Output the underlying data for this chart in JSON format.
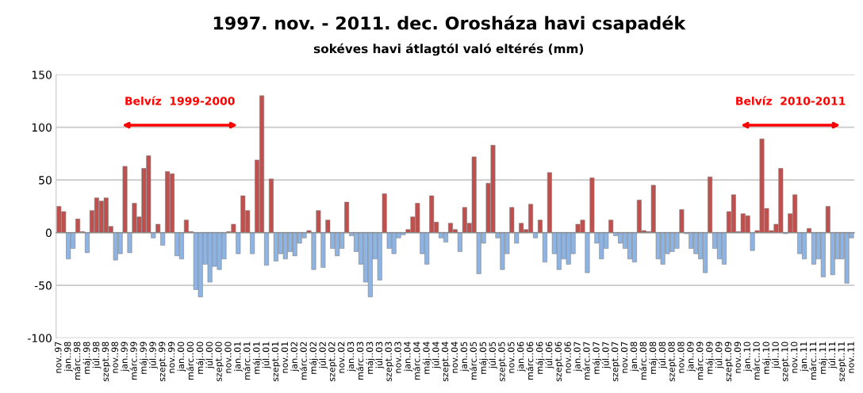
{
  "chart_data": {
    "type": "bar",
    "title": "1997. nov. - 2011. dec. Orosháza havi csapadék",
    "subtitle": "sokéves havi átlagtól való eltérés (mm)",
    "categories": [
      "nov..97",
      null,
      "jan..98",
      null,
      "márc..98",
      null,
      "máj..98",
      null,
      "júl..98",
      null,
      "szept..98",
      null,
      "nov..98",
      null,
      "jan..99",
      null,
      "márc..99",
      null,
      "máj..99",
      null,
      "júl..99",
      null,
      "szept..99",
      null,
      "nov..99",
      null,
      "jan..00",
      null,
      "márc..00",
      null,
      "máj..00",
      null,
      "júl..00",
      null,
      "szept..00",
      null,
      "nov..00",
      null,
      "jan..01",
      null,
      "márc..01",
      null,
      "máj..01",
      null,
      "júl..01",
      null,
      "szept..01",
      null,
      "nov..01",
      null,
      "jan..02",
      null,
      "márc..02",
      null,
      "máj..02",
      null,
      "júl..02",
      null,
      "szept..02",
      null,
      "nov..02",
      null,
      "jan..03",
      null,
      "márc..03",
      null,
      "máj..03",
      null,
      "júl..03",
      null,
      "szept..03",
      null,
      "nov..03",
      null,
      "jan..04",
      null,
      "márc..04",
      null,
      "máj..04",
      null,
      "júl..04",
      null,
      "szept..04",
      null,
      "nov..04",
      null,
      "jan..05",
      null,
      "márc..05",
      null,
      "máj..05",
      null,
      "júl..05",
      null,
      "szept..05",
      null,
      "nov..05",
      null,
      "jan..06",
      null,
      "márc..06",
      null,
      "máj..06",
      null,
      "júl..06",
      null,
      "szept..06",
      null,
      "nov..06",
      null,
      "jan..07",
      null,
      "márc..07",
      null,
      "máj..07",
      null,
      "júl..07",
      null,
      "szept..07",
      null,
      "nov..07",
      null,
      "jan..08",
      null,
      "márc..08",
      null,
      "máj..08",
      null,
      "júl..08",
      null,
      "szept..08",
      null,
      "nov..08",
      null,
      "jan..09",
      null,
      "márc..09",
      null,
      "máj..09",
      null,
      "júl..09",
      null,
      "szept..09",
      null,
      "nov..09",
      null,
      "jan..10",
      null,
      "márc..10",
      null,
      "máj..10",
      null,
      "júl..10",
      null,
      "szept..10",
      null,
      "nov..10",
      null,
      "jan..11",
      null,
      "márc..11",
      null,
      "máj..11",
      null,
      "júl..11",
      null,
      "szept..11",
      null,
      "nov..11"
    ],
    "series": [
      {
        "color": "#c0504d",
        "values": [
          25,
          20,
          null,
          null,
          13,
          1,
          null,
          21,
          33,
          30,
          33,
          6,
          null,
          null,
          63,
          null,
          28,
          15,
          61,
          73,
          null,
          8,
          null,
          58,
          56,
          null,
          null,
          12,
          1,
          null,
          null,
          null,
          null,
          null,
          null,
          null,
          1,
          8,
          null,
          35,
          21,
          null,
          69,
          130,
          null,
          51,
          null,
          null,
          null,
          null,
          null,
          null,
          null,
          2,
          null,
          21,
          null,
          12,
          null,
          null,
          null,
          29,
          null,
          null,
          null,
          null,
          null,
          null,
          null,
          37,
          null,
          null,
          null,
          null,
          3,
          15,
          28,
          null,
          null,
          35,
          10,
          null,
          null,
          9,
          3,
          null,
          24,
          9,
          72,
          null,
          null,
          47,
          83,
          null,
          null,
          null,
          24,
          null,
          9,
          3,
          27,
          null,
          12,
          null,
          57,
          null,
          null,
          null,
          null,
          null,
          8,
          12,
          null,
          52,
          null,
          null,
          null,
          12,
          null,
          null,
          null,
          null,
          null,
          31,
          2,
          1,
          45,
          null,
          null,
          null,
          null,
          null,
          22,
          null,
          null,
          null,
          null,
          null,
          53,
          null,
          null,
          null,
          20,
          36,
          1,
          18,
          16,
          null,
          2,
          89,
          23,
          2,
          8,
          61,
          null,
          18,
          36,
          null,
          null,
          4,
          null,
          null,
          null,
          25,
          null,
          null,
          null,
          null,
          null
        ]
      },
      {
        "color": "#8eb4e3",
        "values": [
          null,
          null,
          -25,
          -15,
          null,
          null,
          -19,
          null,
          null,
          null,
          null,
          null,
          -26,
          -20,
          null,
          -19,
          null,
          null,
          null,
          null,
          -5,
          null,
          -12,
          null,
          null,
          -22,
          -25,
          null,
          null,
          -54,
          -61,
          -30,
          -47,
          -32,
          -35,
          -25,
          null,
          null,
          -20,
          null,
          null,
          -20,
          null,
          null,
          -31,
          null,
          -27,
          -20,
          -25,
          -18,
          -22,
          -10,
          -5,
          null,
          -35,
          null,
          -33,
          null,
          -15,
          -22,
          -15,
          null,
          -3,
          -18,
          -30,
          -47,
          -61,
          -25,
          -45,
          null,
          -15,
          -20,
          -5,
          -2,
          null,
          null,
          null,
          -20,
          -30,
          null,
          null,
          -5,
          -9,
          null,
          null,
          -18,
          null,
          null,
          null,
          -39,
          -10,
          null,
          null,
          -5,
          -35,
          -20,
          null,
          -10,
          null,
          null,
          null,
          -5,
          null,
          -28,
          null,
          -20,
          -35,
          -25,
          -30,
          -20,
          null,
          null,
          -38,
          null,
          -10,
          -25,
          -15,
          null,
          -3,
          -10,
          -15,
          -25,
          -28,
          null,
          null,
          null,
          null,
          -25,
          -30,
          -20,
          -18,
          -15,
          null,
          -1,
          -15,
          -20,
          -25,
          -38,
          null,
          -15,
          -25,
          -30,
          null,
          null,
          null,
          null,
          null,
          -17,
          null,
          null,
          null,
          null,
          null,
          null,
          -1,
          null,
          null,
          -20,
          -25,
          null,
          -30,
          -25,
          -42,
          null,
          -40,
          -25,
          -25,
          -48,
          -5
        ]
      }
    ],
    "ylim": [
      -100,
      150
    ],
    "yticks": [
      -100,
      -50,
      0,
      50,
      100,
      150
    ],
    "grid": "y",
    "annotations": [
      "Belvíz  1999-2000",
      "Belvíz  2010-2011"
    ]
  }
}
